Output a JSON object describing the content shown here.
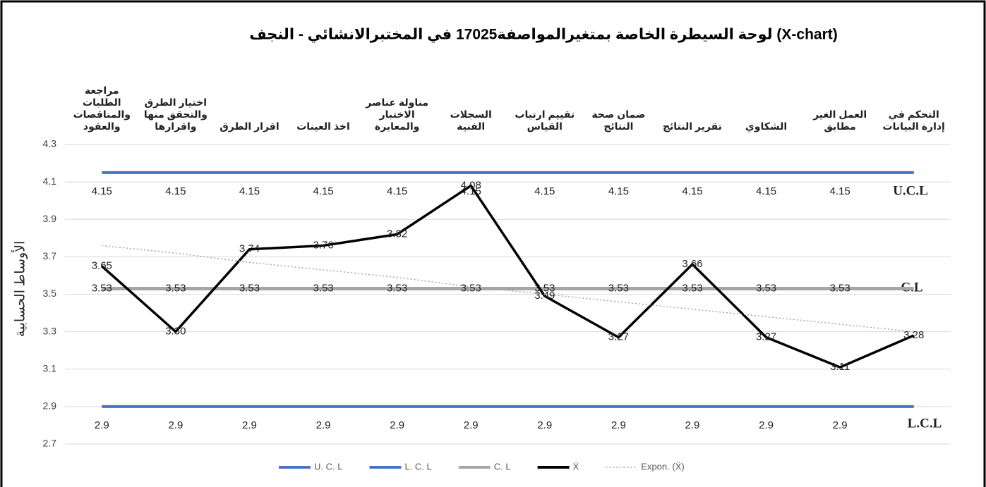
{
  "chart_data": {
    "type": "line",
    "title": "لوحة السيطرة الخاصة بمتغيرالمواصفة17025 في المختبرالانشائي - النجف (X-chart)",
    "y_label": "الأوساط الحسابية",
    "categories": [
      "مراجعة الطلبات والمناقصات والعقود",
      "اختيار الطرق والتحقق منها واقرارها",
      "اقرار الطرق",
      "اخذ العينات",
      "مناولة عناصر الاختبار والمعايرة",
      "السجلات الفنية",
      "تقييم ارتياب القياس",
      "ضمان صحة النتائج",
      "تقرير النتائج",
      "الشكاوي",
      "العمل الغير مطابق",
      "التحكم في إدارة البيانات"
    ],
    "series": [
      {
        "name": "U. C. L",
        "color": "#4472c4",
        "values": [
          4.15,
          4.15,
          4.15,
          4.15,
          4.15,
          4.15,
          4.15,
          4.15,
          4.15,
          4.15,
          4.15,
          4.15
        ],
        "value_labels": [
          "4.15",
          "4.15",
          "4.15",
          "4.15",
          "4.15",
          "4.15",
          "4.15",
          "4.15",
          "4.15",
          "4.15",
          "4.15",
          null
        ]
      },
      {
        "name": "L. C. L",
        "color": "#4472c4",
        "values": [
          2.9,
          2.9,
          2.9,
          2.9,
          2.9,
          2.9,
          2.9,
          2.9,
          2.9,
          2.9,
          2.9,
          2.9
        ],
        "value_labels": [
          "2.9",
          "2.9",
          "2.9",
          "2.9",
          "2.9",
          "2.9",
          "2.9",
          "2.9",
          "2.9",
          "2.9",
          "2.9",
          null
        ]
      },
      {
        "name": "C. L",
        "color": "#a5a5a5",
        "values": [
          3.53,
          3.53,
          3.53,
          3.53,
          3.53,
          3.53,
          3.53,
          3.53,
          3.53,
          3.53,
          3.53,
          3.53
        ],
        "value_labels": [
          "3.53",
          "3.53",
          "3.53",
          "3.53",
          "3.53",
          "3.53",
          "3.53",
          "3.53",
          "3.53",
          "3.53",
          "3.53",
          null
        ]
      },
      {
        "name": "Ẍ",
        "color": "#000000",
        "values": [
          3.65,
          3.3,
          3.74,
          3.76,
          3.82,
          4.08,
          3.49,
          3.27,
          3.66,
          3.27,
          3.11,
          3.28
        ],
        "value_labels": [
          "3.65",
          "3.30",
          "3.74",
          "3.76",
          "3.82",
          "4.08",
          "3.49",
          "3.27",
          "3.66",
          "3.27",
          "3.11",
          "3.28"
        ]
      },
      {
        "name": "Expon. (Ẍ)",
        "color": "#a5a5a5",
        "dashed": true,
        "values": [
          3.76,
          3.72,
          3.67,
          3.63,
          3.59,
          3.54,
          3.5,
          3.46,
          3.42,
          3.38,
          3.34,
          3.3
        ]
      }
    ],
    "annotations": [
      "U.C.L",
      "C.L",
      "L.C.L"
    ],
    "ylim": [
      2.7,
      4.3
    ],
    "yticks": [
      2.7,
      2.9,
      3.1,
      3.3,
      3.5,
      3.7,
      3.9,
      4.1,
      4.3
    ],
    "grid": true
  }
}
